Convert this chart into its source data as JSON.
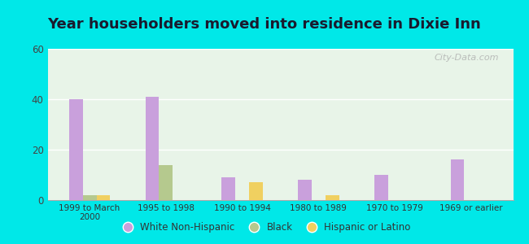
{
  "title": "Year householders moved into residence in Dixie Inn",
  "categories": [
    "1999 to March\n2000",
    "1995 to 1998",
    "1990 to 1994",
    "1980 to 1989",
    "1970 to 1979",
    "1969 or earlier"
  ],
  "white_non_hispanic": [
    40,
    41,
    9,
    8,
    10,
    16
  ],
  "black": [
    2,
    14,
    0,
    0,
    0,
    0
  ],
  "hispanic_or_latino": [
    2,
    0,
    7,
    2,
    0,
    0
  ],
  "bar_colors": {
    "white": "#c9a0dc",
    "black": "#b5c98e",
    "hispanic": "#f0d060"
  },
  "ylim": [
    0,
    60
  ],
  "yticks": [
    0,
    20,
    40,
    60
  ],
  "background_color": "#00e8e8",
  "watermark": "City-Data.com",
  "bar_width": 0.18,
  "title_fontsize": 13,
  "title_color": "#1a1a2e"
}
